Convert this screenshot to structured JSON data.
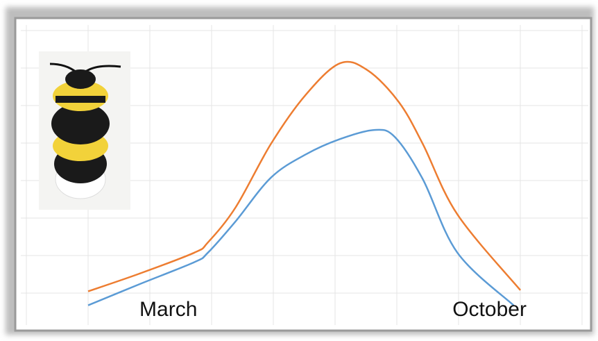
{
  "chart_data": {
    "type": "line",
    "xlim": [
      -1.09,
      8.1
    ],
    "ylim": [
      -0.85,
      7.07
    ],
    "xticks": [
      {
        "value": 1.3,
        "label": "March"
      },
      {
        "value": 6.5,
        "label": "October"
      }
    ],
    "series": [
      {
        "color": "#ed7d31",
        "x": [
          0,
          0.82,
          1.72,
          1.94,
          2.39,
          2.96,
          3.52,
          4.08,
          4.53,
          5.03,
          5.42,
          5.98,
          7.0
        ],
        "values": [
          0.04,
          0.5,
          1.06,
          1.33,
          2.26,
          3.93,
          5.22,
          6.06,
          5.87,
          5.04,
          3.93,
          2.07,
          0.07
        ]
      },
      {
        "color": "#5b9bd5",
        "x": [
          0,
          0.82,
          1.72,
          1.94,
          2.39,
          2.96,
          3.52,
          4.08,
          4.64,
          4.97,
          5.42,
          5.98,
          6.89
        ],
        "values": [
          -0.33,
          0.22,
          0.81,
          1.06,
          1.89,
          3.04,
          3.65,
          4.06,
          4.3,
          4.11,
          3.0,
          1.06,
          -0.33
        ]
      }
    ]
  }
}
